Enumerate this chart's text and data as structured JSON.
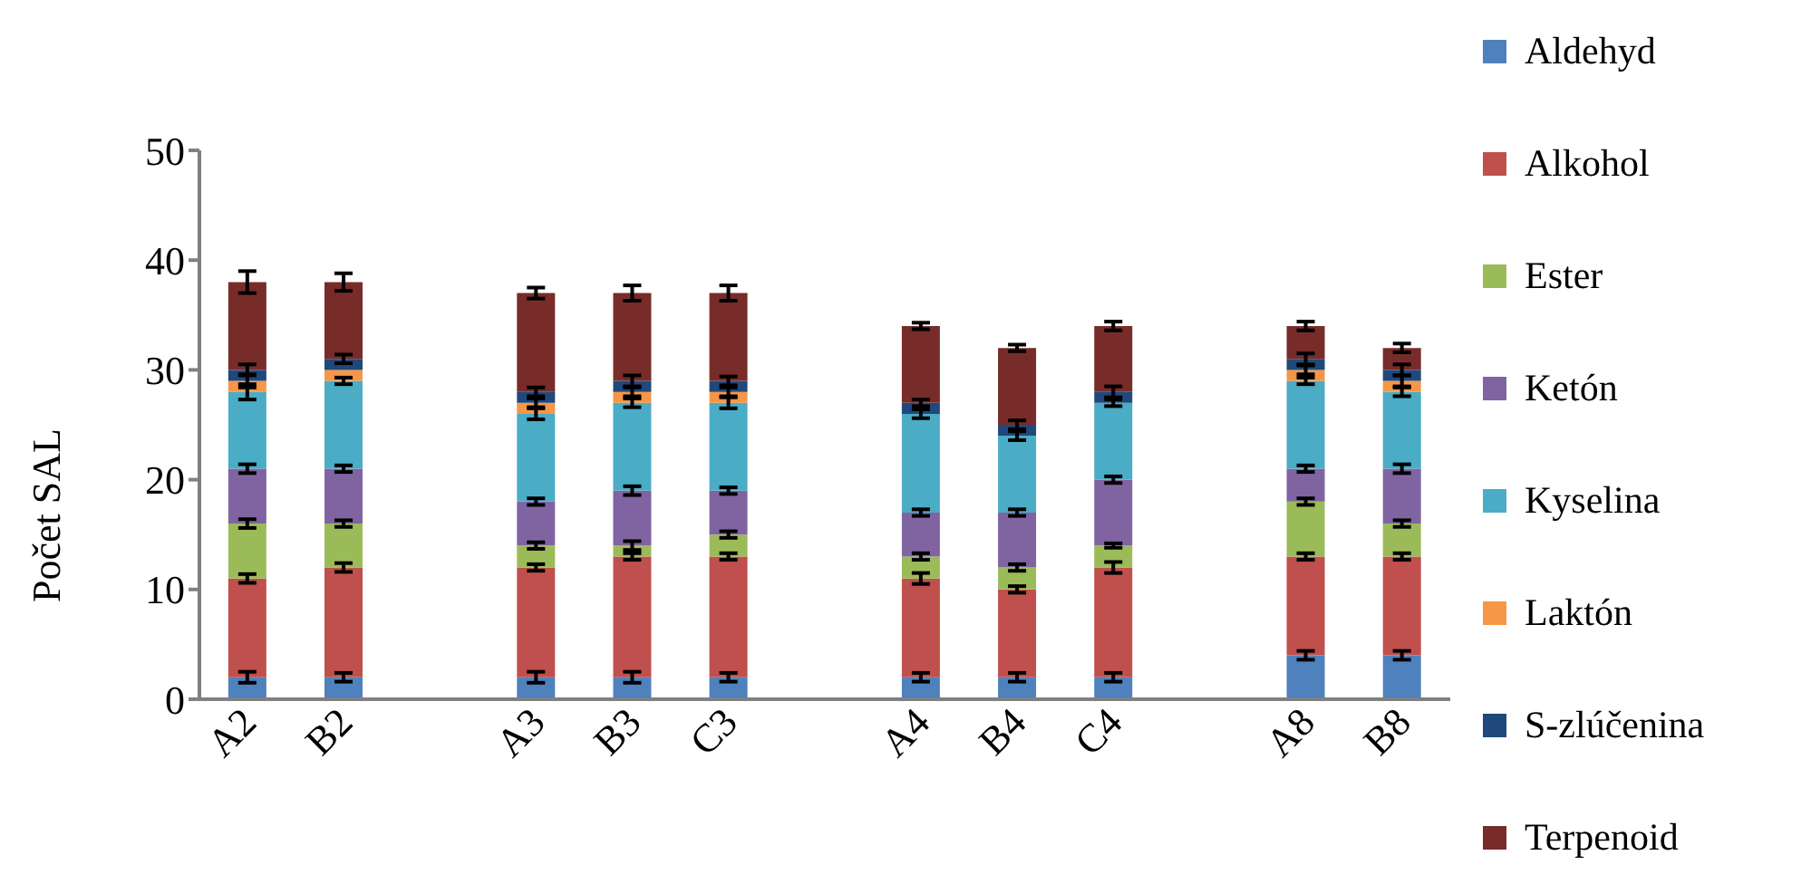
{
  "chart_data": {
    "type": "bar",
    "stacked": true,
    "ylabel": "Počet SAL",
    "categories": [
      "A2",
      "B2",
      null,
      "A3",
      "B3",
      "C3",
      null,
      "A4",
      "B4",
      "C4",
      null,
      "A8",
      "B8"
    ],
    "ylim": [
      0,
      50
    ],
    "yticks": [
      0,
      10,
      20,
      30,
      40,
      50
    ],
    "legend": "right",
    "series": [
      {
        "name": "Aldehyd",
        "color": "#4f81bd",
        "values": [
          2,
          2,
          null,
          2,
          2,
          2,
          null,
          2,
          2,
          2,
          null,
          4,
          4
        ],
        "errors": [
          0.5,
          0.4,
          null,
          0.5,
          0.5,
          0.4,
          null,
          0.4,
          0.4,
          0.4,
          null,
          0.4,
          0.4
        ]
      },
      {
        "name": "Alkohol",
        "color": "#c0504d",
        "values": [
          9,
          10,
          null,
          10,
          11,
          11,
          null,
          9,
          8,
          10,
          null,
          9,
          9
        ],
        "errors": [
          0.4,
          0.4,
          null,
          0.3,
          0.3,
          0.3,
          null,
          0.5,
          0.3,
          0.5,
          null,
          0.3,
          0.3
        ]
      },
      {
        "name": "Ester",
        "color": "#9bbb59",
        "values": [
          5,
          4,
          null,
          2,
          1,
          2,
          null,
          2,
          2,
          2,
          null,
          5,
          3
        ],
        "errors": [
          0.4,
          0.3,
          null,
          0.3,
          0.4,
          0.3,
          null,
          0.3,
          0.3,
          0.2,
          null,
          0.3,
          0.3
        ]
      },
      {
        "name": "Ketón",
        "color": "#8064a2",
        "values": [
          5,
          5,
          null,
          4,
          5,
          4,
          null,
          4,
          5,
          6,
          null,
          3,
          5
        ],
        "errors": [
          0.4,
          0.3,
          null,
          0.3,
          0.4,
          0.3,
          null,
          0.3,
          0.3,
          0.3,
          null,
          0.3,
          0.4
        ]
      },
      {
        "name": "Kyselina",
        "color": "#4bacc6",
        "values": [
          7,
          8,
          null,
          8,
          8,
          8,
          null,
          9,
          7,
          7,
          null,
          8,
          7
        ],
        "errors": [
          0.7,
          0.3,
          null,
          0.5,
          0.4,
          0.5,
          null,
          0.4,
          0.4,
          0.3,
          null,
          0.3,
          0.4
        ]
      },
      {
        "name": "Laktón",
        "color": "#f79646",
        "values": [
          1,
          1,
          null,
          1,
          1,
          1,
          null,
          0,
          0,
          0,
          null,
          1,
          1
        ],
        "errors": [
          0.6,
          null,
          null,
          0.4,
          0.4,
          0.4,
          null,
          null,
          null,
          null,
          null,
          0.4,
          0.5
        ]
      },
      {
        "name": "S-zlúčenina",
        "color": "#1f497d",
        "values": [
          1,
          1,
          null,
          1,
          1,
          1,
          null,
          1,
          1,
          1,
          null,
          1,
          1
        ],
        "errors": [
          0.5,
          0.4,
          null,
          0.4,
          0.5,
          0.4,
          null,
          0.3,
          0.4,
          0.5,
          null,
          0.5,
          0.5
        ]
      },
      {
        "name": "Terpenoid",
        "color": "#772c2a",
        "values": [
          8,
          7,
          null,
          9,
          8,
          8,
          null,
          7,
          7,
          6,
          null,
          3,
          2
        ],
        "errors": [
          1,
          0.8,
          null,
          0.5,
          0.7,
          0.7,
          null,
          0.3,
          0.3,
          0.4,
          null,
          0.4,
          0.4
        ]
      }
    ]
  }
}
